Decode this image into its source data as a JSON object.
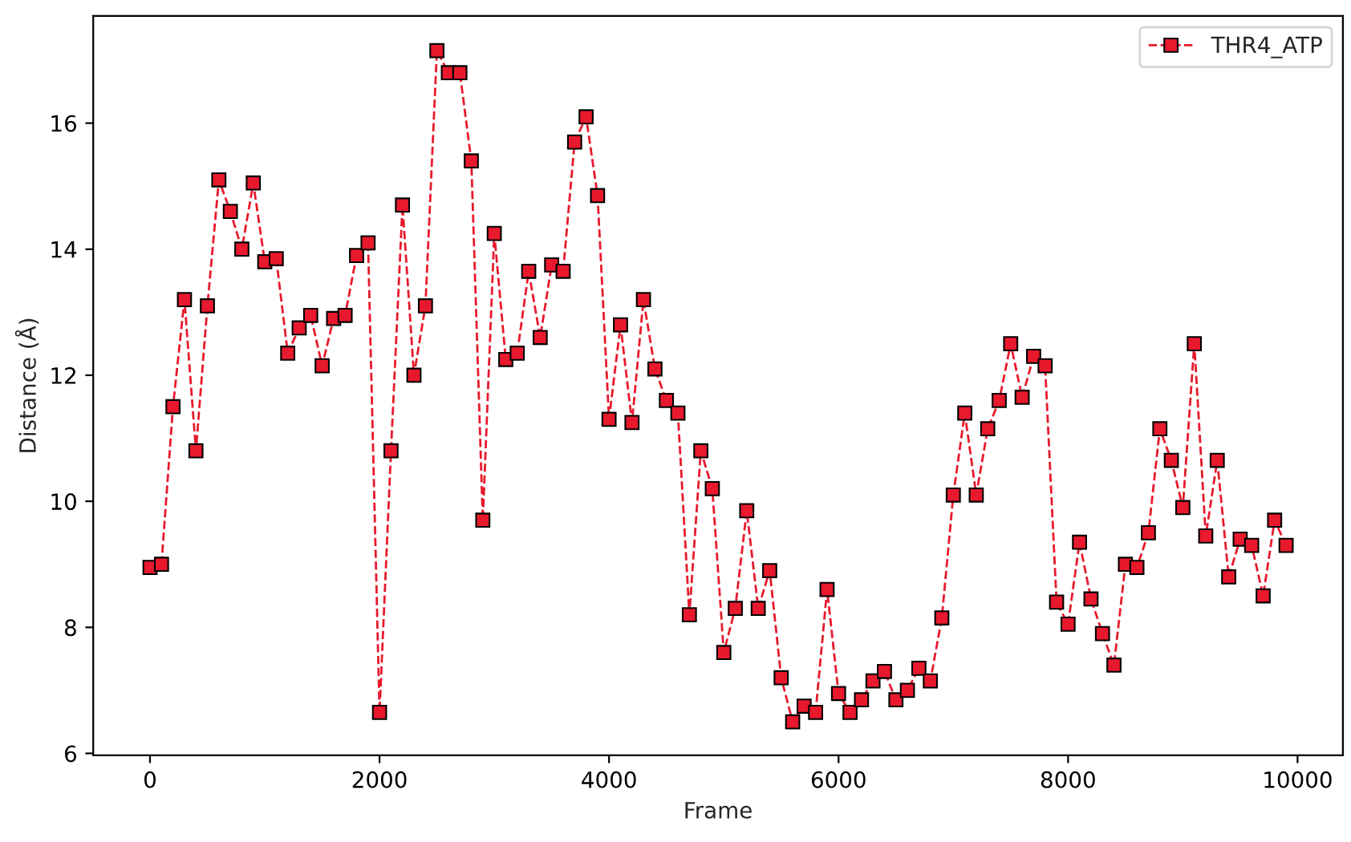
{
  "chart_data": {
    "type": "line",
    "xlabel": "Frame",
    "ylabel": "Distance (Å)",
    "x": [
      0,
      100,
      200,
      300,
      400,
      500,
      600,
      700,
      800,
      900,
      1000,
      1100,
      1200,
      1300,
      1400,
      1500,
      1600,
      1700,
      1800,
      1900,
      2000,
      2100,
      2200,
      2300,
      2400,
      2500,
      2600,
      2700,
      2800,
      2900,
      3000,
      3100,
      3200,
      3300,
      3400,
      3500,
      3600,
      3700,
      3800,
      3900,
      4000,
      4100,
      4200,
      4300,
      4400,
      4500,
      4600,
      4700,
      4800,
      4900,
      5000,
      5100,
      5200,
      5300,
      5400,
      5500,
      5600,
      5700,
      5800,
      5900,
      6000,
      6100,
      6200,
      6300,
      6400,
      6500,
      6600,
      6700,
      6800,
      6900,
      7000,
      7100,
      7200,
      7300,
      7400,
      7500,
      7600,
      7700,
      7800,
      7900,
      8000,
      8100,
      8200,
      8300,
      8400,
      8500,
      8600,
      8700,
      8800,
      8900,
      9000,
      9100,
      9200,
      9300,
      9400,
      9500,
      9600,
      9700,
      9800,
      9900
    ],
    "series": [
      {
        "name": "THR4_ATP",
        "color": "#e8192c",
        "values": [
          8.95,
          9.0,
          11.5,
          13.2,
          10.8,
          13.1,
          15.1,
          14.6,
          14.0,
          15.05,
          13.8,
          13.85,
          12.35,
          12.75,
          12.95,
          12.15,
          12.9,
          12.95,
          13.9,
          14.1,
          6.65,
          10.8,
          14.7,
          12.0,
          13.1,
          17.15,
          16.8,
          16.8,
          15.4,
          9.7,
          14.25,
          12.25,
          12.35,
          13.65,
          12.6,
          13.75,
          13.65,
          15.7,
          16.1,
          14.85,
          11.3,
          12.8,
          11.25,
          13.2,
          12.1,
          11.6,
          11.4,
          8.2,
          10.8,
          10.2,
          7.6,
          8.3,
          9.85,
          8.3,
          8.9,
          7.2,
          6.5,
          6.75,
          6.65,
          8.6,
          6.95,
          6.65,
          6.85,
          7.15,
          7.3,
          6.85,
          7.0,
          7.35,
          7.15,
          8.15,
          10.1,
          11.4,
          10.1,
          11.15,
          11.6,
          12.5,
          11.65,
          12.3,
          12.15,
          8.4,
          8.05,
          9.35,
          8.45,
          7.9,
          7.4,
          9.0,
          8.95,
          9.5,
          11.15,
          10.65,
          9.9,
          12.5,
          9.45,
          10.65,
          8.8,
          9.4,
          9.3,
          8.5,
          9.7,
          9.3
        ]
      }
    ],
    "xlim": [
      -495,
      10395
    ],
    "ylim": [
      5.97,
      17.7
    ],
    "xticks": [
      0,
      2000,
      4000,
      6000,
      8000,
      10000
    ],
    "yticks": [
      6,
      8,
      10,
      12,
      14,
      16
    ],
    "marker": "square",
    "line_style": "dashed",
    "legend": "top right",
    "grid": false
  }
}
